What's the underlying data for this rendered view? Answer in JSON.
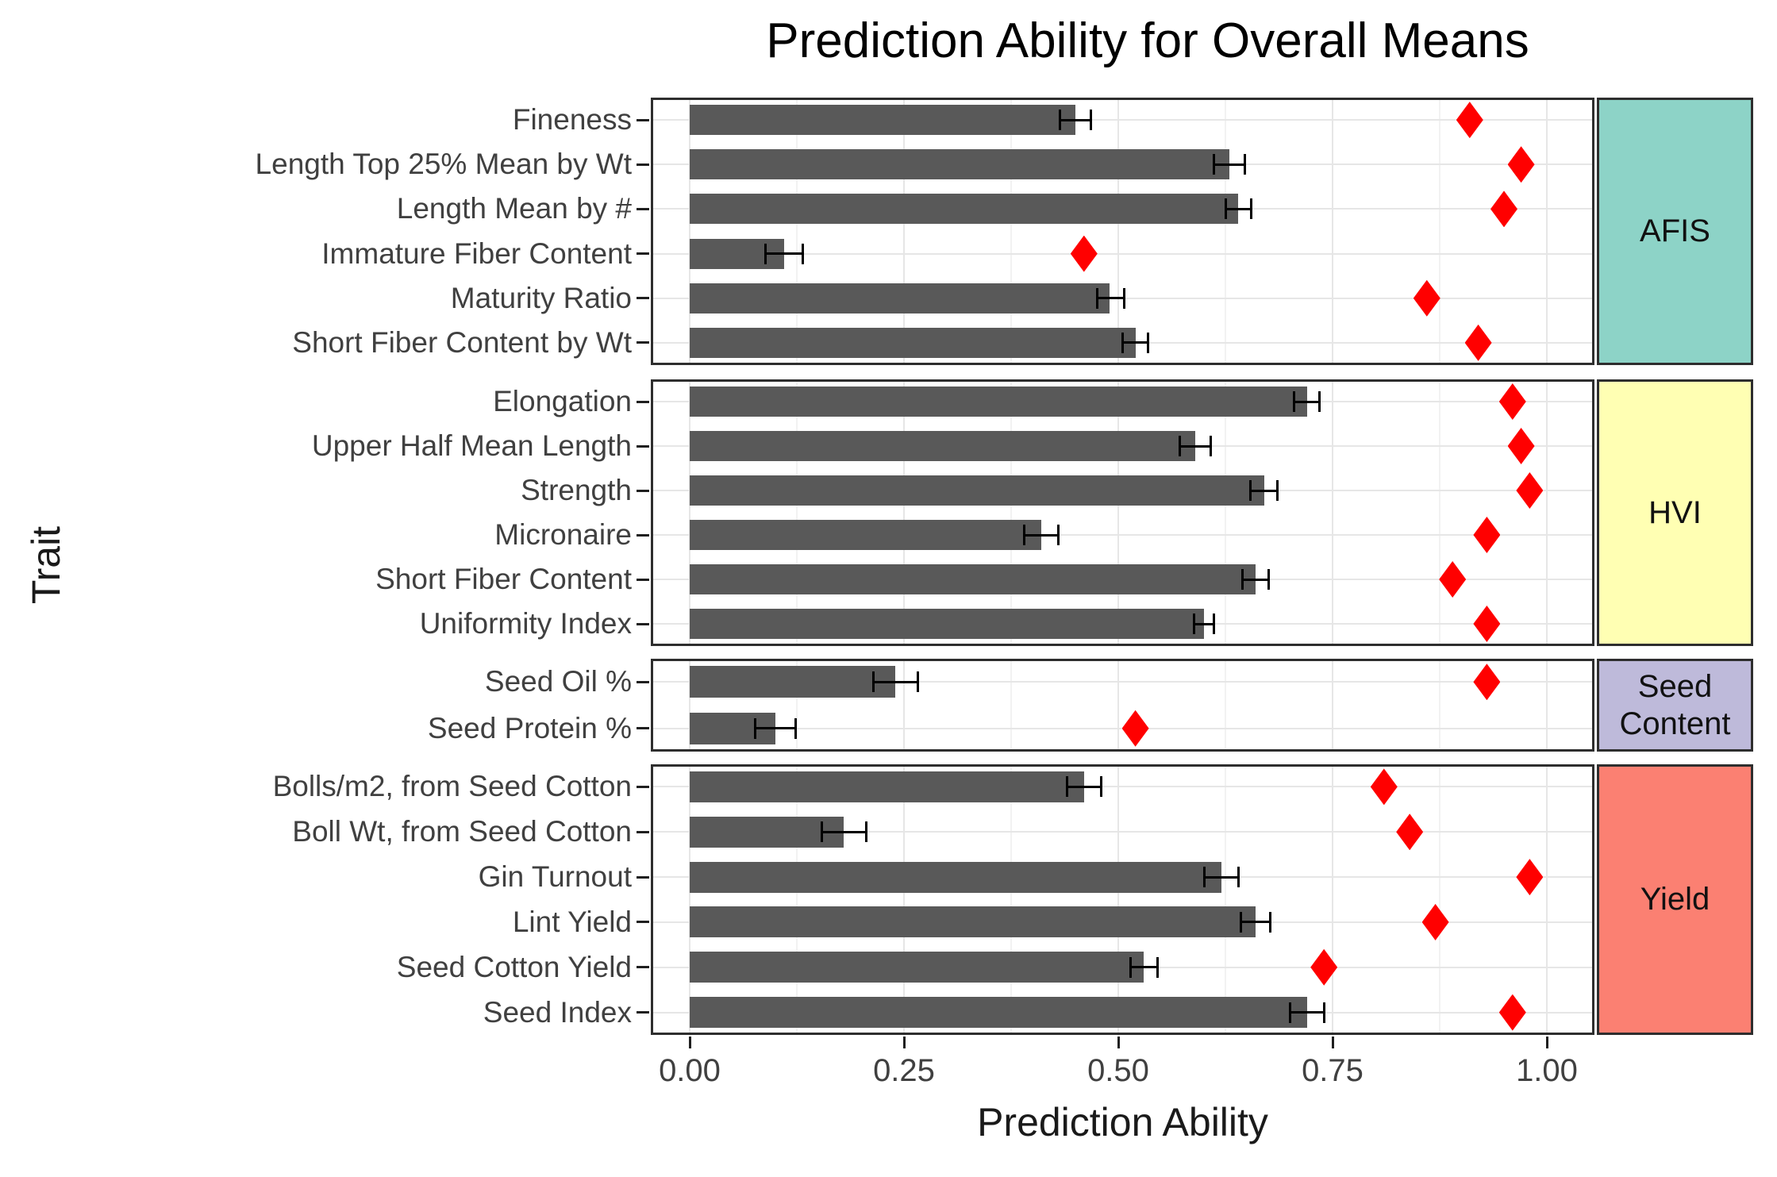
{
  "title": "Prediction Ability for Overall Means",
  "axes": {
    "x_title": "Prediction Ability",
    "y_title": "Trait"
  },
  "colors": {
    "bar_fill": "#595959",
    "diamond_fill": "#ff0000",
    "error_bar": "#000000",
    "panel_border": "#2e2e2e",
    "grid_major": "#e6e6e6",
    "grid_minor": "#f2f2f2",
    "tick_text": "#404040",
    "strip_afis": "#8dd3c7",
    "strip_hvi": "#ffffb3",
    "strip_seed_content": "#bebada",
    "strip_yield": "#fb8072"
  },
  "chart_data": {
    "type": "bar",
    "orientation": "horizontal",
    "title": "Prediction Ability for Overall Means",
    "xlabel": "Prediction Ability",
    "ylabel": "Trait",
    "xlim": [
      -0.045,
      1.056
    ],
    "x_ticks": [
      0,
      0.25,
      0.5,
      0.75,
      1.0
    ],
    "x_tick_labels": [
      "0.00",
      "0.25",
      "0.50",
      "0.75",
      "1.00"
    ],
    "x_minor_gridlines": [
      0.125,
      0.375,
      0.625,
      0.875
    ],
    "grid": true,
    "legend_position": "none",
    "marks": {
      "bar": "prediction ability (dark grey horizontal bar with black error bar)",
      "diamond": "red diamond marker"
    },
    "facets": [
      {
        "name": "AFIS",
        "strip_color": "#8dd3c7",
        "rows": [
          {
            "label": "Fineness",
            "bar": 0.45,
            "err_low": 0.432,
            "err_high": 0.468,
            "diamond": 0.91
          },
          {
            "label": "Length Top 25% Mean by Wt",
            "bar": 0.63,
            "err_low": 0.612,
            "err_high": 0.648,
            "diamond": 0.97
          },
          {
            "label": "Length Mean by #",
            "bar": 0.64,
            "err_low": 0.625,
            "err_high": 0.655,
            "diamond": 0.95
          },
          {
            "label": "Immature Fiber Content",
            "bar": 0.11,
            "err_low": 0.088,
            "err_high": 0.132,
            "diamond": 0.46
          },
          {
            "label": "Maturity Ratio",
            "bar": 0.49,
            "err_low": 0.475,
            "err_high": 0.507,
            "diamond": 0.86
          },
          {
            "label": "Short Fiber Content by Wt",
            "bar": 0.52,
            "err_low": 0.505,
            "err_high": 0.535,
            "diamond": 0.92
          }
        ]
      },
      {
        "name": "HVI",
        "strip_color": "#ffffb3",
        "rows": [
          {
            "label": "Elongation",
            "bar": 0.72,
            "err_low": 0.705,
            "err_high": 0.735,
            "diamond": 0.96
          },
          {
            "label": "Upper Half Mean Length",
            "bar": 0.59,
            "err_low": 0.572,
            "err_high": 0.608,
            "diamond": 0.97
          },
          {
            "label": "Strength",
            "bar": 0.67,
            "err_low": 0.654,
            "err_high": 0.686,
            "diamond": 0.98
          },
          {
            "label": "Micronaire",
            "bar": 0.41,
            "err_low": 0.39,
            "err_high": 0.43,
            "diamond": 0.93
          },
          {
            "label": "Short Fiber Content",
            "bar": 0.66,
            "err_low": 0.645,
            "err_high": 0.675,
            "diamond": 0.89
          },
          {
            "label": "Uniformity Index",
            "bar": 0.6,
            "err_low": 0.588,
            "err_high": 0.612,
            "diamond": 0.93
          }
        ]
      },
      {
        "name": "Seed Content",
        "strip_color": "#bebada",
        "rows": [
          {
            "label": "Seed Oil %",
            "bar": 0.24,
            "err_low": 0.214,
            "err_high": 0.266,
            "diamond": 0.93
          },
          {
            "label": "Seed Protein %",
            "bar": 0.1,
            "err_low": 0.076,
            "err_high": 0.124,
            "diamond": 0.52
          }
        ]
      },
      {
        "name": "Yield",
        "strip_color": "#fb8072",
        "rows": [
          {
            "label": "Bolls/m2, from Seed Cotton",
            "bar": 0.46,
            "err_low": 0.44,
            "err_high": 0.48,
            "diamond": 0.81
          },
          {
            "label": "Boll Wt, from Seed Cotton",
            "bar": 0.18,
            "err_low": 0.154,
            "err_high": 0.206,
            "diamond": 0.84
          },
          {
            "label": "Gin Turnout",
            "bar": 0.62,
            "err_low": 0.6,
            "err_high": 0.64,
            "diamond": 0.98
          },
          {
            "label": "Lint Yield",
            "bar": 0.66,
            "err_low": 0.643,
            "err_high": 0.677,
            "diamond": 0.87
          },
          {
            "label": "Seed Cotton Yield",
            "bar": 0.53,
            "err_low": 0.514,
            "err_high": 0.546,
            "diamond": 0.74
          },
          {
            "label": "Seed Index",
            "bar": 0.72,
            "err_low": 0.7,
            "err_high": 0.74,
            "diamond": 0.96
          }
        ]
      }
    ]
  }
}
